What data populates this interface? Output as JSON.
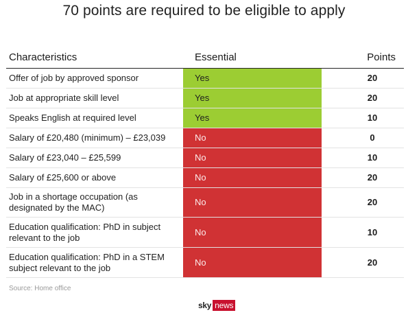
{
  "title": "70 points are required to be eligible to apply",
  "headers": {
    "characteristics": "Characteristics",
    "essential": "Essential",
    "points": "Points"
  },
  "rows": [
    {
      "characteristic": "Offer of job by approved sponsor",
      "essential": "Yes",
      "points": "20",
      "status": "green"
    },
    {
      "characteristic": "Job at appropriate skill level",
      "essential": "Yes",
      "points": "20",
      "status": "green"
    },
    {
      "characteristic": "Speaks English at required level",
      "essential": "Yes",
      "points": "10",
      "status": "green"
    },
    {
      "characteristic": "Salary of £20,480 (minimum) – £23,039",
      "essential": "No",
      "points": "0",
      "status": "red"
    },
    {
      "characteristic": "Salary of £23,040 – £25,599",
      "essential": "No",
      "points": "10",
      "status": "red"
    },
    {
      "characteristic": "Salary of £25,600 or above",
      "essential": "No",
      "points": "20",
      "status": "red"
    },
    {
      "characteristic": "Job in a shortage occupation (as designated by the MAC)",
      "essential": "No",
      "points": "20",
      "status": "red"
    },
    {
      "characteristic": "Education qualification: PhD in subject relevant to the job",
      "essential": "No",
      "points": "10",
      "status": "red"
    },
    {
      "characteristic": "Education qualification: PhD in a STEM subject relevant to the job",
      "essential": "No",
      "points": "20",
      "status": "red"
    }
  ],
  "colors": {
    "green": "#9ccd33",
    "red": "#d03234",
    "brand": "#c8102e"
  },
  "source": "Source: Home office",
  "logo": {
    "sky": "sky",
    "news": "news"
  }
}
